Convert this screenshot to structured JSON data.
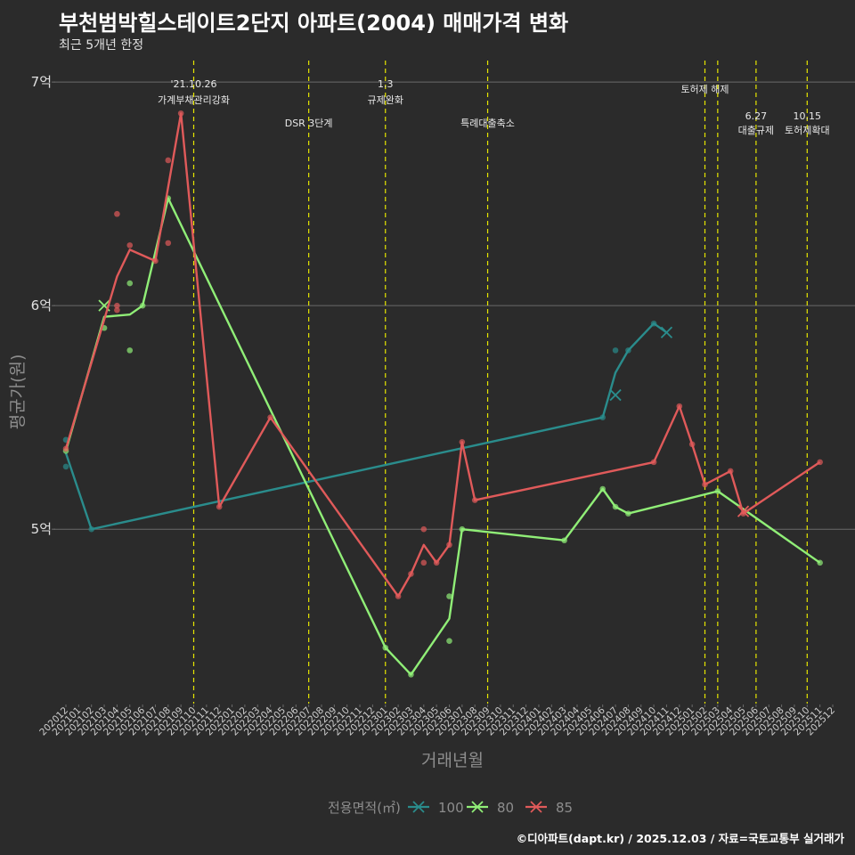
{
  "header": {
    "title": "부천범박힐스테이트2단지 아파트(2004) 매매가격 변화",
    "subtitle": "최근 5개년 한정"
  },
  "footer": {
    "credit": "©디아파트(dapt.kr) / 2025.12.03 / 자료=국토교통부 실거래가"
  },
  "colors": {
    "background": "#2b2b2b",
    "grid": "#6a6a6a",
    "vline": "#e6e600",
    "s100": "#2a8c8c",
    "s80": "#90ee77",
    "s85": "#e05a5a"
  },
  "chart_data": {
    "type": "line",
    "title": "부천범박힐스테이트2단지 아파트(2004) 매매가격 변화",
    "xlabel": "거래년월",
    "ylabel": "평균가(원)",
    "ylim": [
      4.22,
      7.12
    ],
    "yticks": [
      {
        "value": 5,
        "label": "5억"
      },
      {
        "value": 6,
        "label": "6억"
      },
      {
        "value": 7,
        "label": "7억"
      }
    ],
    "categories": [
      "202012",
      "202101",
      "202102",
      "202103",
      "202104",
      "202105",
      "202106",
      "202107",
      "202108",
      "202109",
      "202110",
      "202111",
      "202112",
      "202201",
      "202202",
      "202203",
      "202204",
      "202205",
      "202206",
      "202207",
      "202208",
      "202209",
      "202210",
      "202211",
      "202212",
      "202301",
      "202302",
      "202303",
      "202304",
      "202305",
      "202306",
      "202307",
      "202308",
      "202309",
      "202310",
      "202311",
      "202312",
      "202401",
      "202402",
      "202403",
      "202404",
      "202405",
      "202406",
      "202407",
      "202408",
      "202409",
      "202410",
      "202411",
      "202412",
      "202501",
      "202502",
      "202503",
      "202504",
      "202505",
      "202506",
      "202507",
      "202508",
      "202509",
      "202510",
      "202511",
      "202512"
    ],
    "legend": {
      "title": "전용면적(㎡)",
      "entries": [
        "100",
        "80",
        "85"
      ]
    },
    "policy_lines": [
      {
        "x": 10.0,
        "lines": [
          "'21.10.26",
          "가계부채관리강화"
        ],
        "level": 1
      },
      {
        "x": 19.0,
        "lines": [
          "DSR 3단계"
        ],
        "level": 2
      },
      {
        "x": 25.0,
        "lines": [
          "1.3",
          "규제완화"
        ],
        "level": 1
      },
      {
        "x": 33.0,
        "lines": [
          "특례대출축소"
        ],
        "level": 2
      },
      {
        "x": 50.0,
        "lines": [
          "토허제 해제"
        ],
        "level": 0
      },
      {
        "x": 51.0,
        "lines": [],
        "level": 0
      },
      {
        "x": 54.0,
        "lines": [
          "6.27",
          "대출규제"
        ],
        "level": 3
      },
      {
        "x": 58.0,
        "lines": [
          "10.15",
          "토허제확대"
        ],
        "level": 3
      }
    ],
    "series": [
      {
        "name": "100",
        "color": "#2a8c8c",
        "line": [
          [
            0,
            5.34
          ],
          [
            2,
            5.0
          ],
          [
            42,
            5.5
          ],
          [
            43,
            5.7
          ],
          [
            44,
            5.8
          ],
          [
            46,
            5.92
          ],
          [
            47,
            5.88
          ]
        ],
        "points": [
          [
            0,
            5.4
          ],
          [
            0,
            5.28
          ],
          [
            2,
            5.0
          ],
          [
            42,
            5.5
          ],
          [
            43,
            5.8
          ],
          [
            44,
            5.8
          ],
          [
            46,
            5.92
          ]
        ],
        "crosses": [
          [
            43,
            5.6
          ],
          [
            47,
            5.88
          ]
        ]
      },
      {
        "name": "80",
        "color": "#90ee77",
        "line": [
          [
            0,
            5.35
          ],
          [
            3,
            5.95
          ],
          [
            5,
            5.96
          ],
          [
            6,
            6.0
          ],
          [
            8,
            6.48
          ],
          [
            25,
            4.47
          ],
          [
            27,
            4.35
          ],
          [
            30,
            4.6
          ],
          [
            31,
            5.0
          ],
          [
            39,
            4.95
          ],
          [
            42,
            5.18
          ],
          [
            43,
            5.1
          ],
          [
            44,
            5.07
          ],
          [
            51,
            5.17
          ],
          [
            59,
            4.85
          ]
        ],
        "points": [
          [
            0,
            5.35
          ],
          [
            3,
            5.9
          ],
          [
            5,
            6.1
          ],
          [
            5,
            5.8
          ],
          [
            6,
            6.0
          ],
          [
            8,
            6.48
          ],
          [
            25,
            4.47
          ],
          [
            27,
            4.35
          ],
          [
            30,
            4.7
          ],
          [
            30,
            4.5
          ],
          [
            31,
            5.0
          ],
          [
            39,
            4.95
          ],
          [
            42,
            5.18
          ],
          [
            43,
            5.1
          ],
          [
            44,
            5.07
          ],
          [
            51,
            5.17
          ],
          [
            59,
            4.85
          ]
        ],
        "crosses": [
          [
            3,
            6.0
          ]
        ]
      },
      {
        "name": "85",
        "color": "#e05a5a",
        "line": [
          [
            0,
            5.36
          ],
          [
            4,
            6.13
          ],
          [
            5,
            6.25
          ],
          [
            7,
            6.2
          ],
          [
            9,
            6.86
          ],
          [
            12,
            5.1
          ],
          [
            16,
            5.5
          ],
          [
            26,
            4.7
          ],
          [
            27,
            4.8
          ],
          [
            28,
            4.93
          ],
          [
            29,
            4.85
          ],
          [
            30,
            4.93
          ],
          [
            31,
            5.39
          ],
          [
            32,
            5.13
          ],
          [
            46,
            5.3
          ],
          [
            48,
            5.55
          ],
          [
            49,
            5.38
          ],
          [
            50,
            5.2
          ],
          [
            52,
            5.26
          ],
          [
            53,
            5.07
          ],
          [
            59,
            5.3
          ]
        ],
        "points": [
          [
            0,
            5.36
          ],
          [
            4,
            6.41
          ],
          [
            4,
            6.0
          ],
          [
            4,
            5.98
          ],
          [
            5,
            6.27
          ],
          [
            7,
            6.2
          ],
          [
            8,
            6.65
          ],
          [
            8,
            6.28
          ],
          [
            9,
            6.86
          ],
          [
            12,
            5.1
          ],
          [
            16,
            5.5
          ],
          [
            26,
            4.7
          ],
          [
            27,
            4.8
          ],
          [
            28,
            5.0
          ],
          [
            28,
            4.85
          ],
          [
            29,
            4.85
          ],
          [
            30,
            4.93
          ],
          [
            31,
            5.39
          ],
          [
            32,
            5.13
          ],
          [
            46,
            5.3
          ],
          [
            48,
            5.55
          ],
          [
            49,
            5.38
          ],
          [
            50,
            5.2
          ],
          [
            52,
            5.26
          ],
          [
            53,
            5.07
          ],
          [
            59,
            5.3
          ]
        ],
        "crosses": [
          [
            53,
            5.08
          ]
        ]
      }
    ]
  }
}
